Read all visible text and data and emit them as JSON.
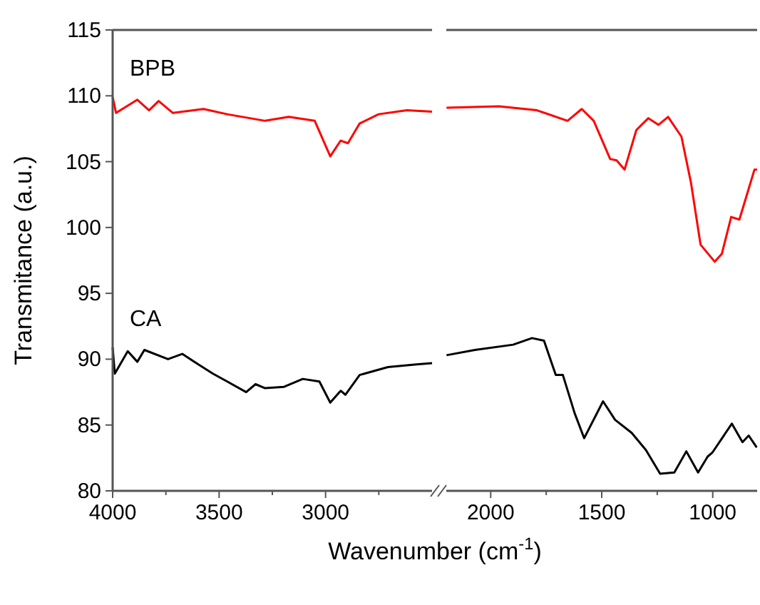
{
  "chart_data": [
    {
      "type": "line",
      "ylabel": "Transmitance (a.u.)",
      "xlabel": "Wavenumber (cm$^{-1}$)",
      "xlim": [
        4000,
        2500
      ],
      "ylim": [
        80,
        115
      ],
      "xticks": [
        4000,
        {
          "value": 3750,
          "label": null
        },
        3500,
        {
          "value": 3250,
          "label": null
        },
        3000,
        {
          "value": 2750,
          "label": null
        }
      ],
      "yticks": [
        80,
        85,
        90,
        95,
        100,
        105,
        110,
        115
      ],
      "grid": false,
      "series": [
        {
          "name": "BPB",
          "color": "#ff0000",
          "x": [
            4000,
            3984,
            3884,
            3829,
            3784,
            3717,
            3573,
            3462,
            3284,
            3173,
            3051,
            2978,
            2929,
            2895,
            2840,
            2751,
            2618,
            2500
          ],
          "values": [
            109.9,
            108.7,
            109.7,
            108.9,
            109.6,
            108.7,
            109.0,
            108.6,
            108.1,
            108.4,
            108.1,
            105.4,
            106.6,
            106.4,
            107.9,
            108.6,
            108.9,
            108.8
          ]
        },
        {
          "name": "CA",
          "color": "#000000",
          "x": [
            4000,
            3990,
            3929,
            3884,
            3851,
            3740,
            3673,
            3617,
            3529,
            3462,
            3373,
            3329,
            3284,
            3195,
            3107,
            3029,
            2978,
            2929,
            2907,
            2840,
            2707,
            2573,
            2500
          ],
          "values": [
            90.9,
            88.9,
            90.6,
            89.8,
            90.7,
            90.0,
            90.4,
            89.8,
            88.9,
            88.3,
            87.5,
            88.1,
            87.8,
            87.9,
            88.5,
            88.3,
            86.7,
            87.6,
            87.3,
            88.8,
            89.4,
            89.6,
            89.7
          ]
        }
      ]
    },
    {
      "type": "line",
      "xlim": [
        2200,
        800
      ],
      "ylim": [
        80,
        115
      ],
      "xticks": [
        2000,
        {
          "value": 1750,
          "label": null
        },
        1500,
        {
          "value": 1250,
          "label": null
        },
        1000
      ],
      "yticks": [
        80,
        85,
        90,
        95,
        100,
        105,
        110,
        115
      ],
      "tick_labels": "x",
      "grid": false,
      "series": [
        {
          "color": "#ff0000",
          "x": [
            2199,
            1963,
            1792,
            1654,
            1590,
            1536,
            1462,
            1433,
            1397,
            1344,
            1290,
            1244,
            1201,
            1141,
            1098,
            1055,
            991,
            959,
            917,
            880,
            812,
            800
          ],
          "values": [
            109.1,
            109.2,
            108.9,
            108.1,
            109.0,
            108.1,
            105.2,
            105.1,
            104.4,
            107.4,
            108.3,
            107.8,
            108.4,
            106.9,
            103.4,
            98.7,
            97.4,
            98.0,
            100.8,
            100.6,
            104.4,
            104.4
          ]
        },
        {
          "color": "#000000",
          "x": [
            2199,
            2071,
            1899,
            1814,
            1760,
            1707,
            1675,
            1622,
            1579,
            1494,
            1440,
            1365,
            1301,
            1237,
            1173,
            1119,
            1066,
            1023,
            1002,
            914,
            866,
            838,
            802
          ],
          "values": [
            90.3,
            90.7,
            91.1,
            91.6,
            91.4,
            88.8,
            88.8,
            85.9,
            84.0,
            86.8,
            85.4,
            84.4,
            83.1,
            81.3,
            81.4,
            83.0,
            81.4,
            82.6,
            82.9,
            85.1,
            83.7,
            84.2,
            83.3
          ]
        }
      ]
    }
  ]
}
